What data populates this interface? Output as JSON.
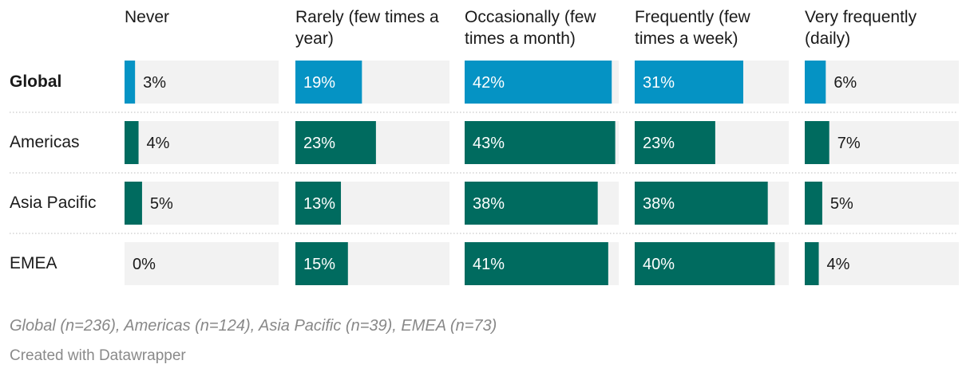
{
  "chart_data": {
    "type": "bar",
    "columns": [
      "Never",
      "Rarely (few times a year)",
      "Occasionally (few times a month)",
      "Frequently (few times a week)",
      "Very frequently (daily)"
    ],
    "rows": [
      {
        "label": "Global",
        "bold": true,
        "color": "#0593c4",
        "values": [
          3,
          19,
          42,
          31,
          6
        ]
      },
      {
        "label": "Americas",
        "bold": false,
        "color": "#006b5f",
        "values": [
          4,
          23,
          43,
          23,
          7
        ]
      },
      {
        "label": "Asia Pacific",
        "bold": false,
        "color": "#006b5f",
        "values": [
          5,
          13,
          38,
          38,
          5
        ]
      },
      {
        "label": "EMEA",
        "bold": false,
        "color": "#006b5f",
        "values": [
          0,
          15,
          41,
          40,
          4
        ]
      }
    ],
    "value_suffix": "%",
    "xlim": [
      0,
      44
    ],
    "track_color": "#f2f2f2",
    "label_on_bar_color": "#ffffff",
    "label_off_bar_color": "#1a1a1a"
  },
  "notes": "Global (n=236), Americas (n=124), Asia Pacific (n=39), EMEA (n=73)",
  "credit": "Created with Datawrapper"
}
